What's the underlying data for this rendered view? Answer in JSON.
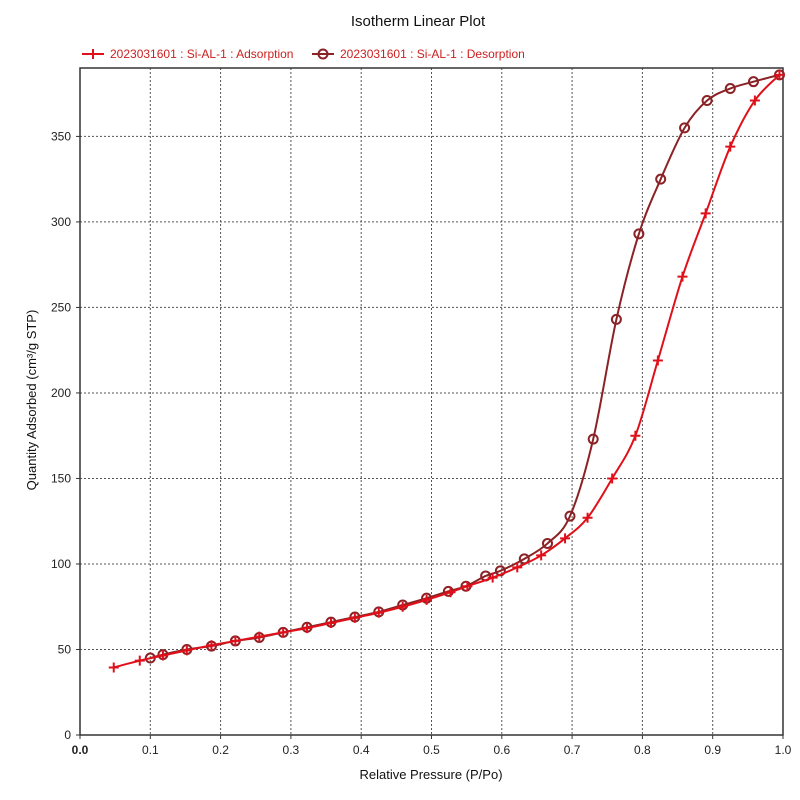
{
  "chart_data": {
    "type": "line",
    "title": "Isotherm Linear Plot",
    "xlabel": "Relative Pressure (P/Po)",
    "ylabel": "Quantity Adsorbed (cm³/g STP)",
    "xlim": [
      0,
      1
    ],
    "ylim": [
      0,
      390
    ],
    "x_ticks": [
      "0.0",
      "0.1",
      "0.2",
      "0.3",
      "0.4",
      "0.5",
      "0.6",
      "0.7",
      "0.8",
      "0.9",
      "1.0"
    ],
    "y_ticks": [
      {
        "value": 0,
        "label": "0"
      },
      {
        "value": 50,
        "label": "50"
      },
      {
        "value": 100,
        "label": "100"
      },
      {
        "value": 150,
        "label": "150"
      },
      {
        "value": 200,
        "label": "200"
      },
      {
        "value": 250,
        "label": "250"
      },
      {
        "value": 300,
        "label": "300"
      },
      {
        "value": 350,
        "label": "350"
      }
    ],
    "grid": true,
    "legend_position": "top",
    "series": [
      {
        "name": "2023031601 : Si-AL-1 : Adsorption",
        "color": "#e0101a",
        "marker": "plus",
        "x": [
          0.048,
          0.085,
          0.118,
          0.152,
          0.187,
          0.221,
          0.255,
          0.289,
          0.323,
          0.357,
          0.391,
          0.425,
          0.459,
          0.493,
          0.527,
          0.551,
          0.587,
          0.622,
          0.656,
          0.69,
          0.722,
          0.757,
          0.79,
          0.822,
          0.857,
          0.89,
          0.925,
          0.96,
          0.995
        ],
        "y": [
          39.5,
          43.5,
          46.5,
          49.5,
          52.5,
          55,
          57.5,
          60,
          62.5,
          65.5,
          68.5,
          71.5,
          75,
          79,
          83.5,
          87,
          92,
          98,
          105,
          115,
          127,
          150,
          175,
          219,
          268,
          305,
          344,
          371,
          386
        ]
      },
      {
        "name": "2023031601 : Si-AL-1 : Desorption",
        "color": "#8b2226",
        "marker": "circle",
        "x": [
          0.995,
          0.958,
          0.925,
          0.892,
          0.86,
          0.826,
          0.795,
          0.763,
          0.73,
          0.697,
          0.665,
          0.632,
          0.598,
          0.577,
          0.549,
          0.524,
          0.493,
          0.459,
          0.425,
          0.391,
          0.357,
          0.323,
          0.289,
          0.255,
          0.221,
          0.187,
          0.152,
          0.118,
          0.1
        ],
        "y": [
          386,
          382,
          378,
          371,
          355,
          325,
          293,
          243,
          173,
          128,
          112,
          103,
          96,
          93,
          87,
          84,
          80,
          76,
          72,
          69,
          66,
          63,
          60,
          57,
          55,
          52,
          50,
          47,
          45
        ]
      }
    ]
  }
}
